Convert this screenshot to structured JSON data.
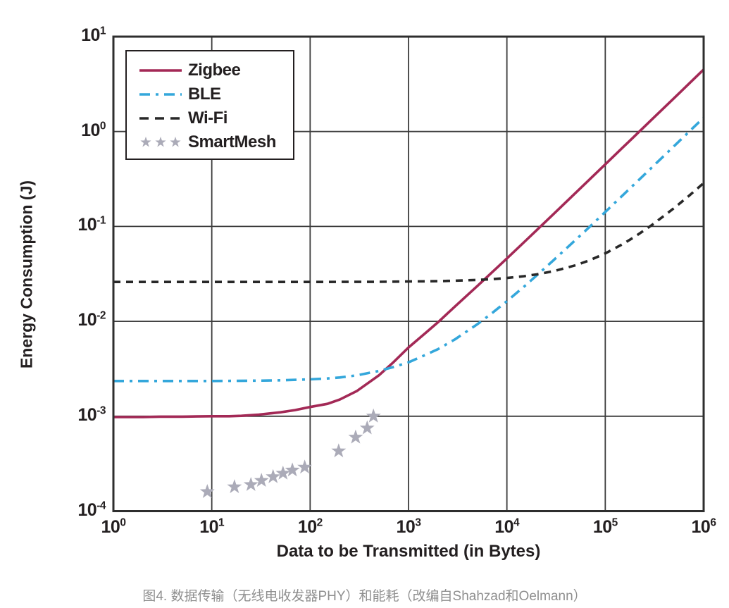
{
  "figure": {
    "caption": "图4. 数据传输（无线电收发器PHY）和能耗（改编自Shahzad和Oelmann）"
  },
  "colors": {
    "zigbee": "#A32956",
    "ble": "#34A7DB",
    "wifi": "#282828",
    "smartmesh": "#ABABB8",
    "grid": "#3C3C3C",
    "border": "#2E2E2E",
    "axis_text": "#231F20",
    "caption_text": "#8F8F8F",
    "background": "#FFFFFF"
  },
  "chart_data": {
    "type": "line",
    "title": "",
    "xlabel": "Data to be Transmitted (in Bytes)",
    "ylabel": "Energy Consumption (J)",
    "x_scale": "log",
    "y_scale": "log",
    "xlim": [
      1,
      1000000
    ],
    "ylim": [
      0.0001,
      10
    ],
    "x_tick_exponents": [
      0,
      1,
      2,
      3,
      4,
      5,
      6
    ],
    "y_tick_exponents": [
      1,
      0,
      -1,
      -2,
      -3,
      -4
    ],
    "grid": true,
    "legend_position": "top-left",
    "series": [
      {
        "name": "Zigbee",
        "style": "solid",
        "color": "#A32956",
        "points": [
          [
            1,
            0.00098
          ],
          [
            2,
            0.00098
          ],
          [
            3,
            0.00099
          ],
          [
            5,
            0.00099
          ],
          [
            7,
            0.000995
          ],
          [
            10,
            0.001
          ],
          [
            15,
            0.001
          ],
          [
            20,
            0.00101
          ],
          [
            30,
            0.00104
          ],
          [
            50,
            0.0011
          ],
          [
            70,
            0.00116
          ],
          [
            100,
            0.00125
          ],
          [
            150,
            0.00135
          ],
          [
            200,
            0.0015
          ],
          [
            300,
            0.00185
          ],
          [
            500,
            0.0027
          ],
          [
            700,
            0.0037
          ],
          [
            1000,
            0.0053
          ],
          [
            1500,
            0.0076
          ],
          [
            2000,
            0.0098
          ],
          [
            3000,
            0.0145
          ],
          [
            5000,
            0.0235
          ],
          [
            7000,
            0.0325
          ],
          [
            10000,
            0.046
          ],
          [
            15000,
            0.0685
          ],
          [
            20000,
            0.091
          ],
          [
            30000,
            0.136
          ],
          [
            50000,
            0.226
          ],
          [
            70000,
            0.316
          ],
          [
            100000,
            0.451
          ],
          [
            150000,
            0.676
          ],
          [
            200000,
            0.901
          ],
          [
            300000,
            1.35
          ],
          [
            500000,
            2.25
          ],
          [
            700000,
            3.15
          ],
          [
            1000000,
            4.5
          ]
        ]
      },
      {
        "name": "BLE",
        "style": "dash-dot",
        "color": "#34A7DB",
        "points": [
          [
            1,
            0.00235
          ],
          [
            10,
            0.00235
          ],
          [
            30,
            0.00237
          ],
          [
            50,
            0.00239
          ],
          [
            100,
            0.00245
          ],
          [
            150,
            0.0025
          ],
          [
            200,
            0.00256
          ],
          [
            300,
            0.0027
          ],
          [
            500,
            0.003
          ],
          [
            700,
            0.0033
          ],
          [
            1000,
            0.0037
          ],
          [
            1500,
            0.00445
          ],
          [
            2000,
            0.0051
          ],
          [
            3000,
            0.0065
          ],
          [
            5000,
            0.0093
          ],
          [
            7000,
            0.0121
          ],
          [
            10000,
            0.0163
          ],
          [
            15000,
            0.0233
          ],
          [
            20000,
            0.0303
          ],
          [
            30000,
            0.0443
          ],
          [
            50000,
            0.0723
          ],
          [
            70000,
            0.1
          ],
          [
            100000,
            0.142
          ],
          [
            150000,
            0.212
          ],
          [
            200000,
            0.282
          ],
          [
            300000,
            0.422
          ],
          [
            500000,
            0.702
          ],
          [
            700000,
            0.982
          ],
          [
            1000000,
            1.4
          ]
        ]
      },
      {
        "name": "Wi-Fi",
        "style": "dashed",
        "color": "#282828",
        "points": [
          [
            1,
            0.026
          ],
          [
            10,
            0.026
          ],
          [
            100,
            0.026
          ],
          [
            500,
            0.0261
          ],
          [
            1000,
            0.0263
          ],
          [
            2000,
            0.0265
          ],
          [
            3000,
            0.0268
          ],
          [
            5000,
            0.0273
          ],
          [
            7000,
            0.0278
          ],
          [
            10000,
            0.0286
          ],
          [
            15000,
            0.0299
          ],
          [
            20000,
            0.0312
          ],
          [
            30000,
            0.0338
          ],
          [
            50000,
            0.039
          ],
          [
            70000,
            0.0442
          ],
          [
            100000,
            0.052
          ],
          [
            150000,
            0.065
          ],
          [
            200000,
            0.078
          ],
          [
            300000,
            0.104
          ],
          [
            500000,
            0.156
          ],
          [
            700000,
            0.208
          ],
          [
            1000000,
            0.286
          ]
        ]
      },
      {
        "name": "SmartMesh",
        "style": "stars",
        "color": "#ABABB8",
        "points": [
          [
            9,
            0.00016
          ],
          [
            17,
            0.00018
          ],
          [
            25,
            0.00019
          ],
          [
            32,
            0.00021
          ],
          [
            42,
            0.00023
          ],
          [
            53,
            0.00025
          ],
          [
            66,
            0.00027
          ],
          [
            88,
            0.00029
          ],
          [
            195,
            0.00043
          ],
          [
            290,
            0.0006
          ],
          [
            380,
            0.00075
          ],
          [
            440,
            0.001
          ]
        ]
      }
    ]
  }
}
